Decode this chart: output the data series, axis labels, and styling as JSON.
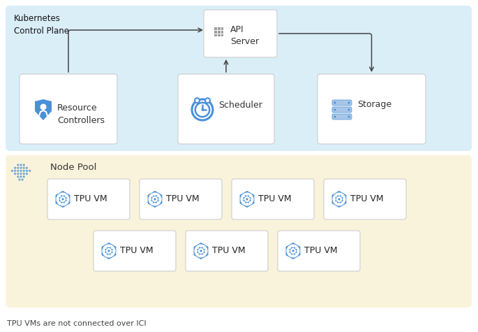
{
  "bg_color": "#ffffff",
  "k8s_panel_color": "#daeef8",
  "node_pool_panel_color": "#faf3dc",
  "box_edge_color": "#cccccc",
  "arrow_color": "#444444",
  "blue_icon_color": "#4a90d9",
  "tpu_icon_color": "#4a8fd4",
  "title_k8s": "Kubernetes\nControl Plane",
  "title_node_pool": "Node Pool",
  "api_server_label": "API\nServer",
  "resource_controllers_label": "Resource\nControllers",
  "scheduler_label": "Scheduler",
  "storage_label": "Storage",
  "tpu_vm_label": "TPU VM",
  "footer_text": "TPU VMs are not connected over ICI",
  "fig_width": 6.85,
  "fig_height": 4.75,
  "dpi": 100
}
